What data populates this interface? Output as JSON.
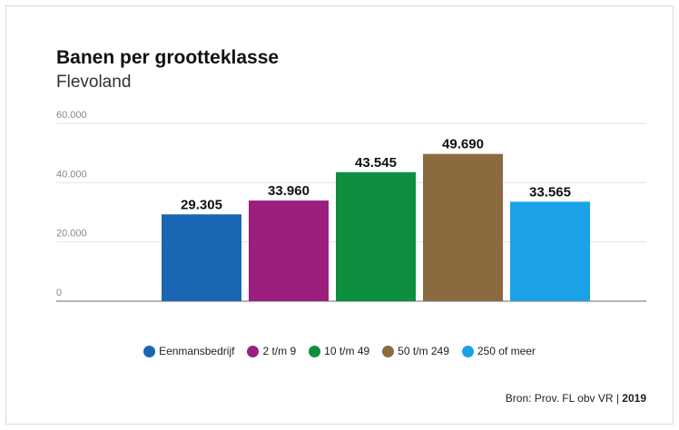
{
  "chart_data": {
    "type": "bar",
    "title": "Banen per grootteklasse",
    "subtitle": "Flevoland",
    "categories": [
      "Eenmansbedrijf",
      "2 t/m 9",
      "10 t/m 49",
      "50 t/m 249",
      "250 of meer"
    ],
    "values": [
      29305,
      33960,
      43545,
      49690,
      33565
    ],
    "value_labels": [
      "29.305",
      "33.960",
      "43.545",
      "49.690",
      "33.565"
    ],
    "colors": [
      "#1a66b3",
      "#9c1f7e",
      "#0e8f3f",
      "#8c6a40",
      "#1ba2e6"
    ],
    "ylim": [
      0,
      60000
    ],
    "yticks": [
      0,
      20000,
      40000,
      60000
    ],
    "ytick_labels": [
      "0",
      "20.000",
      "40.000",
      "60.000"
    ],
    "grid": true,
    "legend_position": "bottom",
    "xlabel": "",
    "ylabel": ""
  },
  "source": {
    "text": "Bron: Prov. FL obv VR",
    "separator": " | ",
    "year": "2019"
  }
}
